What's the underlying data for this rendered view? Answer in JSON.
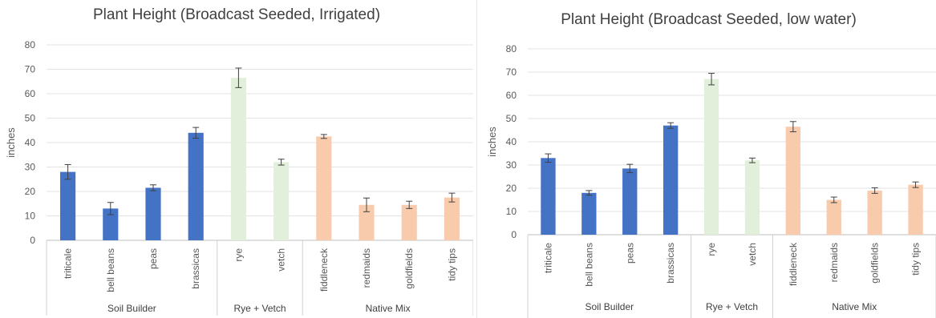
{
  "chart_data": [
    {
      "type": "bar",
      "title": "Plant Height (Broadcast Seeded, Irrigated)",
      "ylabel": "inches",
      "ylim": [
        0,
        80
      ],
      "yticks": [
        0,
        10,
        20,
        30,
        40,
        50,
        60,
        70,
        80
      ],
      "grid": true,
      "categories": [
        "triticale",
        "bell beans",
        "peas",
        "brassicas",
        "rye",
        "vetch",
        "fiddleneck",
        "redmaids",
        "goldfields",
        "tidy tips"
      ],
      "values": [
        28,
        13,
        21.5,
        44,
        66.5,
        32,
        42.5,
        14.5,
        14.5,
        17.5
      ],
      "errors": [
        3,
        2.5,
        1.2,
        2.2,
        4,
        1.2,
        0.8,
        2.8,
        1.5,
        1.8
      ],
      "groups": [
        {
          "label": "Soil Builder",
          "members": [
            "triticale",
            "bell beans",
            "peas",
            "brassicas"
          ],
          "color": "#4472C4"
        },
        {
          "label": "Rye + Vetch",
          "members": [
            "rye",
            "vetch"
          ],
          "color": "#E2EFDA"
        },
        {
          "label": "Native Mix",
          "members": [
            "fiddleneck",
            "redmaids",
            "goldfields",
            "tidy tips"
          ],
          "color": "#F8CBAD"
        }
      ]
    },
    {
      "type": "bar",
      "title": "Plant Height (Broadcast Seeded, low water)",
      "ylabel": "inches",
      "ylim": [
        0,
        80
      ],
      "yticks": [
        0,
        10,
        20,
        30,
        40,
        50,
        60,
        70,
        80
      ],
      "grid": true,
      "categories": [
        "triticale",
        "bell beans",
        "peas",
        "brassicas",
        "rye",
        "vetch",
        "fiddleneck",
        "redmaids",
        "goldfields",
        "tidy tips"
      ],
      "values": [
        33,
        18,
        28.5,
        47,
        67,
        32,
        46.5,
        15,
        19,
        21.5
      ],
      "errors": [
        1.8,
        1,
        1.8,
        1.2,
        2.5,
        1,
        2.2,
        1.2,
        1.2,
        1.2
      ],
      "groups": [
        {
          "label": "Soil Builder",
          "members": [
            "triticale",
            "bell beans",
            "peas",
            "brassicas"
          ],
          "color": "#4472C4"
        },
        {
          "label": "Rye + Vetch",
          "members": [
            "rye",
            "vetch"
          ],
          "color": "#E2EFDA"
        },
        {
          "label": "Native Mix",
          "members": [
            "fiddleneck",
            "redmaids",
            "goldfields",
            "tidy tips"
          ],
          "color": "#F8CBAD"
        }
      ]
    }
  ]
}
